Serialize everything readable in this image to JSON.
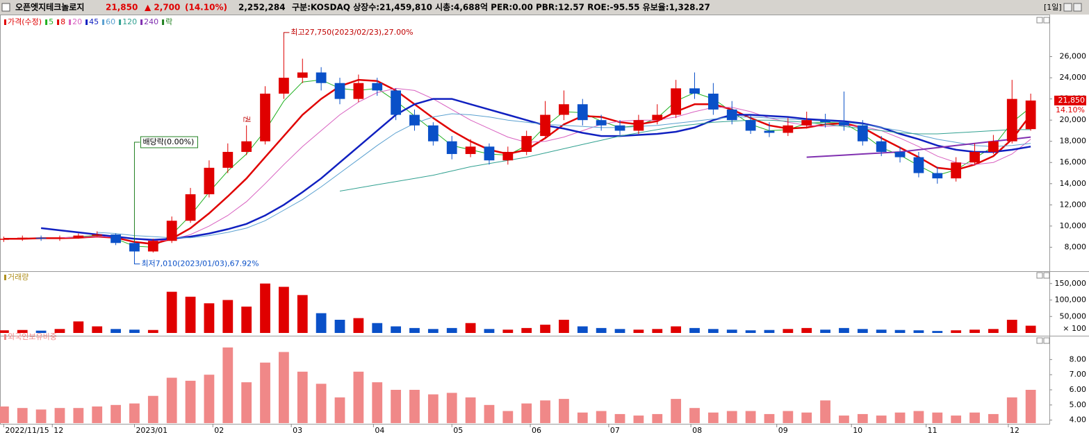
{
  "header": {
    "name": "오픈엣지테크놀로지",
    "price": "21,850",
    "change": "▲ 2,700",
    "change_pct": "(14.10%)",
    "volume": "2,252,284",
    "info": "구분:KOSDAQ 상장수:21,459,810 시총:4,688억 PER:0.00 PBR:12.57 ROE:-95.55 유보율:1,328.27",
    "period": "[1일]"
  },
  "chart_data": [
    {
      "type": "candlestick",
      "legend_title": "가격(수정)",
      "legend_extra": "락",
      "up_color": "#e00000",
      "down_color": "#0a50c8",
      "x": [
        0,
        5,
        10,
        15,
        20,
        25,
        30,
        35,
        40,
        45,
        50,
        55,
        60,
        65,
        70,
        75,
        80,
        85,
        90,
        95,
        100,
        105,
        110,
        115,
        120,
        125,
        130,
        135,
        140,
        145,
        150,
        155,
        160,
        165,
        170,
        175,
        180,
        185,
        190,
        195,
        200,
        205,
        210,
        215,
        220,
        225,
        230,
        235,
        240,
        245,
        250,
        255,
        260,
        265,
        270,
        275
      ],
      "open": [
        8700,
        8800,
        8900,
        8800,
        8900,
        9100,
        9200,
        8400,
        7600,
        8600,
        10500,
        13000,
        15500,
        17000,
        18000,
        22500,
        24000,
        24500,
        23500,
        22000,
        23500,
        22800,
        20500,
        19500,
        18000,
        16800,
        17500,
        16200,
        17000,
        18500,
        20500,
        21500,
        20000,
        19500,
        19000,
        20000,
        20500,
        23000,
        22500,
        21000,
        20000,
        19000,
        18800,
        19500,
        20000,
        19800,
        19500,
        18000,
        17000,
        16500,
        15000,
        14500,
        16000,
        17000,
        18000,
        19150
      ],
      "high": [
        9000,
        9100,
        9100,
        9100,
        9300,
        9500,
        9300,
        8500,
        8800,
        10900,
        13600,
        16200,
        17800,
        19500,
        23200,
        27750,
        25800,
        25000,
        24000,
        24300,
        24000,
        23000,
        21000,
        19800,
        18500,
        18200,
        17800,
        17500,
        19000,
        21800,
        22800,
        22000,
        20500,
        20000,
        20500,
        21500,
        23800,
        24500,
        23500,
        21800,
        20500,
        19800,
        20200,
        20800,
        20600,
        22700,
        20000,
        18500,
        17500,
        17000,
        15600,
        16500,
        17800,
        18600,
        23800,
        22500
      ],
      "low": [
        8500,
        8600,
        8600,
        8600,
        8800,
        9000,
        8200,
        7010,
        7500,
        8400,
        10300,
        12700,
        15000,
        16700,
        17700,
        22000,
        23500,
        22800,
        21500,
        21700,
        22300,
        20000,
        19000,
        17600,
        16300,
        16500,
        15800,
        15800,
        16700,
        18200,
        20000,
        19500,
        19000,
        18600,
        18700,
        19600,
        20200,
        22000,
        20500,
        19600,
        18700,
        18400,
        18500,
        19200,
        19300,
        19000,
        17600,
        16600,
        16000,
        14600,
        14000,
        14200,
        15800,
        16800,
        17800,
        19000
      ],
      "close": [
        8800,
        8900,
        8800,
        8900,
        9100,
        9200,
        8400,
        7600,
        8600,
        10500,
        13000,
        15500,
        17000,
        18000,
        22500,
        24000,
        24500,
        23500,
        22000,
        23500,
        22800,
        20500,
        19500,
        18000,
        16800,
        17500,
        16200,
        17000,
        18500,
        20500,
        21500,
        20000,
        19500,
        19000,
        20000,
        20500,
        23000,
        22500,
        21000,
        20000,
        19000,
        18800,
        19500,
        20000,
        19800,
        19500,
        18000,
        17000,
        16500,
        15000,
        14500,
        16000,
        17000,
        18000,
        22000,
        21850
      ],
      "series": [
        {
          "name": "5",
          "color": "#20b020",
          "width": 1,
          "values": [
            8800,
            8850,
            8850,
            8850,
            9000,
            9100,
            8800,
            8100,
            8000,
            9200,
            11000,
            13200,
            15200,
            16800,
            19000,
            21800,
            23600,
            23800,
            23000,
            22800,
            23000,
            21800,
            20400,
            19000,
            17600,
            17200,
            16800,
            16700,
            17600,
            19400,
            20800,
            20700,
            19900,
            19300,
            19500,
            20200,
            21800,
            22600,
            22000,
            20800,
            19600,
            19000,
            19100,
            19700,
            19800,
            19700,
            18700,
            17400,
            16700,
            15700,
            14800,
            15300,
            16400,
            17500,
            19800,
            21200
          ]
        },
        {
          "name": "8",
          "color": "#e00000",
          "width": 2.5,
          "values": [
            8800,
            8800,
            8850,
            8850,
            8900,
            9000,
            8900,
            8500,
            8300,
            8800,
            9800,
            11200,
            12800,
            14500,
            16500,
            18500,
            20500,
            22000,
            23200,
            23800,
            23700,
            22800,
            21500,
            20200,
            19000,
            18000,
            17200,
            16800,
            17200,
            18300,
            19600,
            20400,
            20300,
            19800,
            19600,
            19900,
            20800,
            21500,
            21500,
            21000,
            20200,
            19500,
            19200,
            19300,
            19600,
            19700,
            19300,
            18300,
            17400,
            16500,
            15500,
            15300,
            15800,
            16600,
            18200,
            20500
          ]
        },
        {
          "name": "20",
          "color": "#d860c0",
          "width": 1,
          "values": [
            null,
            null,
            null,
            8900,
            8950,
            9000,
            8950,
            8800,
            8600,
            8700,
            9200,
            10000,
            11000,
            12300,
            14000,
            15800,
            17500,
            19000,
            20500,
            21700,
            22600,
            23000,
            22800,
            22000,
            21000,
            20000,
            19200,
            18400,
            17900,
            18000,
            18400,
            19000,
            19600,
            19900,
            20000,
            20000,
            20300,
            20800,
            21200,
            21200,
            20800,
            20200,
            19800,
            19500,
            19400,
            19500,
            19400,
            19000,
            18300,
            17500,
            16600,
            16000,
            15800,
            16000,
            16800,
            18200
          ]
        },
        {
          "name": "45",
          "color": "#1020c0",
          "width": 2.5,
          "values": [
            null,
            null,
            9800,
            9600,
            9400,
            9200,
            9000,
            8800,
            8700,
            8800,
            9000,
            9300,
            9700,
            10200,
            11000,
            12000,
            13200,
            14500,
            16000,
            17500,
            19000,
            20500,
            21500,
            22000,
            22000,
            21500,
            21000,
            20500,
            20000,
            19500,
            19200,
            18800,
            18500,
            18500,
            18600,
            18700,
            18900,
            19300,
            20000,
            20500,
            20500,
            20400,
            20300,
            20100,
            20000,
            19900,
            19700,
            19300,
            18700,
            18200,
            17600,
            17200,
            17000,
            17000,
            17200,
            17500
          ]
        },
        {
          "name": "60",
          "color": "#5aa0d0",
          "width": 1,
          "values": [
            null,
            null,
            null,
            null,
            null,
            9400,
            9300,
            9100,
            9000,
            8900,
            8900,
            9100,
            9400,
            9800,
            10500,
            11500,
            12500,
            13700,
            15000,
            16300,
            17600,
            18800,
            19700,
            20300,
            20600,
            20500,
            20300,
            20000,
            19800,
            19600,
            19500,
            19400,
            19300,
            19300,
            19400,
            19500,
            19700,
            19900,
            20100,
            20300,
            20300,
            20200,
            20100,
            20000,
            19900,
            19800,
            19600,
            19300,
            19000,
            18600,
            18200,
            17900,
            17600,
            17500,
            17600,
            17800
          ]
        },
        {
          "name": "120",
          "color": "#30a090",
          "width": 1,
          "values": [
            null,
            null,
            null,
            null,
            null,
            null,
            null,
            null,
            null,
            null,
            null,
            null,
            null,
            null,
            null,
            null,
            null,
            null,
            13300,
            13600,
            13900,
            14200,
            14500,
            14800,
            15200,
            15600,
            15900,
            16200,
            16500,
            16900,
            17300,
            17700,
            18100,
            18500,
            18800,
            19100,
            19400,
            19600,
            19800,
            19900,
            20000,
            20000,
            19900,
            19800,
            19600,
            19400,
            19200,
            19000,
            18800,
            18700,
            18700,
            18800,
            18900,
            19000,
            19100,
            19100
          ]
        },
        {
          "name": "240",
          "color": "#8030b0",
          "width": 2,
          "values": [
            null,
            null,
            null,
            null,
            null,
            null,
            null,
            null,
            null,
            null,
            null,
            null,
            null,
            null,
            null,
            null,
            null,
            null,
            null,
            null,
            null,
            null,
            null,
            null,
            null,
            null,
            null,
            null,
            null,
            null,
            null,
            null,
            null,
            null,
            null,
            null,
            null,
            null,
            null,
            null,
            null,
            null,
            null,
            16500,
            16600,
            16700,
            16800,
            16900,
            17000,
            17200,
            17400,
            17600,
            17800,
            18000,
            18200,
            18400
          ]
        }
      ],
      "annotations": [
        {
          "text": "최고27,750(2023/02/23),27.00%",
          "index": 15,
          "at": "high"
        },
        {
          "text": "최저7,010(2023/01/03),67.92%",
          "index": 7,
          "at": "low"
        },
        {
          "text": "배당락(0.00%)",
          "index": 7,
          "at": "dividend"
        },
        {
          "text": "권",
          "index": 13,
          "at": "rights"
        }
      ],
      "last_price_label": "21,850",
      "last_change_label": "14.10%",
      "xlim": [
        -1,
        280
      ],
      "xticks": [
        {
          "value": 0,
          "label": "2022/11/15"
        },
        {
          "value": 13,
          "label": "12"
        },
        {
          "value": 35,
          "label": "2023/01"
        },
        {
          "value": 56,
          "label": "02"
        },
        {
          "value": 77,
          "label": "03"
        },
        {
          "value": 99,
          "label": "04"
        },
        {
          "value": 120,
          "label": "05"
        },
        {
          "value": 141,
          "label": "06"
        },
        {
          "value": 162,
          "label": "07"
        },
        {
          "value": 184,
          "label": "08"
        },
        {
          "value": 207,
          "label": "09"
        },
        {
          "value": 227,
          "label": "10"
        },
        {
          "value": 247,
          "label": "11"
        },
        {
          "value": 269,
          "label": "12"
        }
      ],
      "ylim": [
        5800,
        29900
      ],
      "yticks": [
        {
          "value": 8000,
          "label": "8,000"
        },
        {
          "value": 10000,
          "label": "10,000"
        },
        {
          "value": 12000,
          "label": "12,000"
        },
        {
          "value": 14000,
          "label": "14,000"
        },
        {
          "value": 16000,
          "label": "16,000"
        },
        {
          "value": 18000,
          "label": "18,000"
        },
        {
          "value": 20000,
          "label": "20,000"
        },
        {
          "value": 22000,
          "label": "22,000"
        },
        {
          "value": 24000,
          "label": "24,000"
        },
        {
          "value": 26000,
          "label": "26,000"
        }
      ]
    },
    {
      "type": "bar",
      "title": "거래량",
      "unit_label": "× 100",
      "values": [
        8000,
        9000,
        7000,
        12000,
        35000,
        20000,
        12000,
        10000,
        9000,
        125000,
        110000,
        90000,
        100000,
        80000,
        150000,
        140000,
        115000,
        60000,
        40000,
        45000,
        30000,
        20000,
        15000,
        12000,
        15000,
        30000,
        12000,
        10000,
        15000,
        25000,
        40000,
        20000,
        15000,
        12000,
        10000,
        12000,
        20000,
        15000,
        12000,
        10000,
        8000,
        9000,
        12000,
        15000,
        10000,
        15000,
        12000,
        10000,
        9000,
        8000,
        6000,
        8000,
        10000,
        12000,
        40000,
        22000
      ],
      "ylim": [
        0,
        160000
      ],
      "yticks": [
        {
          "value": 50000,
          "label": "50,000"
        },
        {
          "value": 100000,
          "label": "100,000"
        },
        {
          "value": 150000,
          "label": "150,000"
        }
      ]
    },
    {
      "type": "bar",
      "title": "외국인보유비중",
      "color": "#f08888",
      "values": [
        4.9,
        4.8,
        4.7,
        4.8,
        4.8,
        4.9,
        5.0,
        5.1,
        5.6,
        6.8,
        6.6,
        7.0,
        8.8,
        6.5,
        7.8,
        8.5,
        7.2,
        6.4,
        5.5,
        7.2,
        6.5,
        6.0,
        6.0,
        5.7,
        5.8,
        5.5,
        5.0,
        4.6,
        5.1,
        5.3,
        5.4,
        4.5,
        4.6,
        4.4,
        4.3,
        4.4,
        5.4,
        4.8,
        4.5,
        4.6,
        4.6,
        4.4,
        4.6,
        4.5,
        5.3,
        4.3,
        4.4,
        4.3,
        4.5,
        4.6,
        4.5,
        4.3,
        4.5,
        4.4,
        5.5,
        6.0
      ],
      "ylim": [
        3.8,
        9.3
      ],
      "yticks": [
        {
          "value": 4,
          "label": "4.00"
        },
        {
          "value": 5,
          "label": "5.00"
        },
        {
          "value": 6,
          "label": "6.00"
        },
        {
          "value": 7,
          "label": "7.00"
        },
        {
          "value": 8,
          "label": "8.00"
        }
      ]
    }
  ]
}
